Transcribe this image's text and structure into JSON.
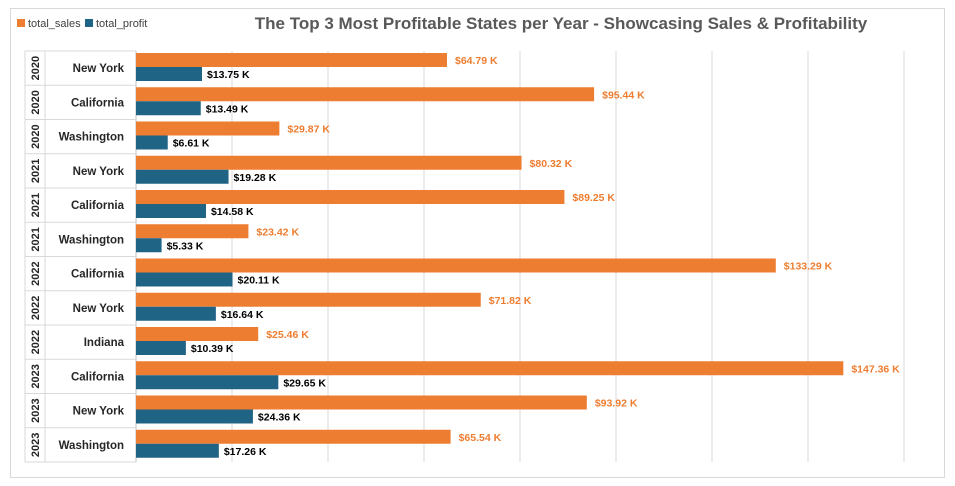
{
  "chart_data": {
    "type": "bar",
    "orientation": "horizontal",
    "title": "The Top 3 Most Profitable States per Year - Showcasing Sales & Profitability",
    "legend_position": "top-left",
    "grid": true,
    "xlim": [
      0,
      160000
    ],
    "colors": {
      "total_sales": "#ED7D31",
      "total_profit": "#1F6385"
    },
    "categories": [
      {
        "year": "2020",
        "state": "New York"
      },
      {
        "year": "2020",
        "state": "California"
      },
      {
        "year": "2020",
        "state": "Washington"
      },
      {
        "year": "2021",
        "state": "New York"
      },
      {
        "year": "2021",
        "state": "California"
      },
      {
        "year": "2021",
        "state": "Washington"
      },
      {
        "year": "2022",
        "state": "California"
      },
      {
        "year": "2022",
        "state": "New York"
      },
      {
        "year": "2022",
        "state": "Indiana"
      },
      {
        "year": "2023",
        "state": "California"
      },
      {
        "year": "2023",
        "state": "New York"
      },
      {
        "year": "2023",
        "state": "Washington"
      }
    ],
    "series": [
      {
        "name": "total_sales",
        "values": [
          64790,
          95440,
          29870,
          80320,
          89250,
          23420,
          133290,
          71820,
          25460,
          147360,
          93920,
          65540
        ],
        "labels": [
          "$64.79 K",
          "$95.44 K",
          "$29.87 K",
          "$80.32 K",
          "$89.25 K",
          "$23.42 K",
          "$133.29 K",
          "$71.82 K",
          "$25.46 K",
          "$147.36 K",
          "$93.92 K",
          "$65.54 K"
        ]
      },
      {
        "name": "total_profit",
        "values": [
          13750,
          13490,
          6610,
          19280,
          14580,
          5330,
          20110,
          16640,
          10390,
          29650,
          24360,
          17260
        ],
        "labels": [
          "$13.75 K",
          "$13.49 K",
          "$6.61 K",
          "$19.28 K",
          "$14.58 K",
          "$5.33 K",
          "$20.11 K",
          "$16.64 K",
          "$10.39 K",
          "$29.65 K",
          "$24.36 K",
          "$17.26 K"
        ]
      }
    ]
  }
}
